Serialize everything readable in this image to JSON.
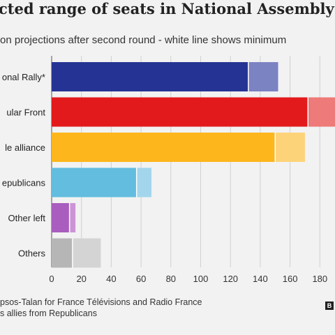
{
  "header": {
    "title": "cted range of seats in National Assembly",
    "subtitle": "on projections after second round - white line shows minimum"
  },
  "chart_data": {
    "type": "bar",
    "orientation": "horizontal",
    "stacked_range": true,
    "categories": [
      "onal Rally*",
      "ular Front",
      "le alliance",
      "epublicans",
      "Other left",
      "Others"
    ],
    "series": [
      {
        "name": "Minimum",
        "values": [
          132,
          172,
          150,
          57,
          12,
          14
        ]
      },
      {
        "name": "Maximum",
        "values": [
          152,
          192,
          170,
          67,
          16,
          33
        ]
      }
    ],
    "colors": {
      "min": [
        "#253494",
        "#e31a1c",
        "#fdb61b",
        "#62bddf",
        "#a95dbf",
        "#b6b6b6"
      ],
      "max": [
        "#7b83c3",
        "#ee7a79",
        "#fdd37a",
        "#a3d6ec",
        "#cb95d5",
        "#d4d4d4"
      ]
    },
    "x_ticks": [
      "0",
      "20",
      "40",
      "60",
      "80",
      "100",
      "120",
      "140",
      "160",
      "180"
    ],
    "xlim": [
      0,
      190
    ],
    "grid": true,
    "legend": "none"
  },
  "footer": {
    "source": "psos-Talan for France Télévisions and Radio France",
    "note": "s allies from Republicans",
    "logo": "B"
  }
}
